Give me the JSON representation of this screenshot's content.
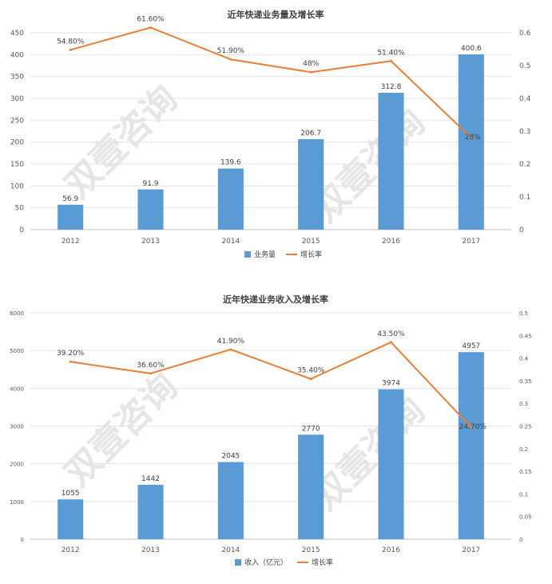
{
  "watermark_text": "双壹咨询",
  "chart_data": [
    {
      "type": "bar",
      "title": "近年快递业务量及增长率",
      "categories": [
        "2012",
        "2013",
        "2014",
        "2015",
        "2016",
        "2017"
      ],
      "series": [
        {
          "name": "业务量",
          "type": "bar",
          "axis": "left",
          "color": "#5b9bd5",
          "values": [
            56.9,
            91.9,
            139.6,
            206.7,
            312.8,
            400.6
          ],
          "labels": [
            "56.9",
            "91.9",
            "139.6",
            "206.7",
            "312.8",
            "400.6"
          ]
        },
        {
          "name": "增长率",
          "type": "line",
          "axis": "right",
          "color": "#ed7d31",
          "values": [
            0.548,
            0.616,
            0.519,
            0.48,
            0.514,
            0.28
          ],
          "labels": [
            "54.80%",
            "61.60%",
            "51.90%",
            "48%",
            "51.40%",
            "28%"
          ]
        }
      ],
      "ylim": [
        0,
        450
      ],
      "yticks": [
        "0",
        "50",
        "100",
        "150",
        "200",
        "250",
        "300",
        "350",
        "400",
        "450"
      ],
      "y2lim": [
        0,
        0.6
      ],
      "y2ticks": [
        "0",
        "0.1",
        "0.2",
        "0.3",
        "0.4",
        "0.5",
        "0.6"
      ],
      "grid": true,
      "legend": "bottom"
    },
    {
      "type": "bar",
      "title": "近年快递业务收入及增长率",
      "categories": [
        "2012",
        "2013",
        "2014",
        "2015",
        "2016",
        "2017"
      ],
      "series": [
        {
          "name": "收入（亿元）",
          "type": "bar",
          "axis": "left",
          "color": "#5b9bd5",
          "values": [
            1055,
            1442,
            2045,
            2770,
            3974,
            4957
          ],
          "labels": [
            "1055",
            "1442",
            "2045",
            "2770",
            "3974",
            "4957"
          ]
        },
        {
          "name": "增长率",
          "type": "line",
          "axis": "right",
          "color": "#ed7d31",
          "values": [
            0.392,
            0.366,
            0.419,
            0.354,
            0.435,
            0.247
          ],
          "labels": [
            "39.20%",
            "36.60%",
            "41.90%",
            "35.40%",
            "43.50%",
            "24.70%"
          ]
        }
      ],
      "ylim": [
        0,
        6000
      ],
      "yticks": [
        "0",
        "1000",
        "2000",
        "3000",
        "4000",
        "5000",
        "6000"
      ],
      "y2lim": [
        0,
        0.5
      ],
      "y2ticks": [
        "0",
        "0.05",
        "0.1",
        "0.15",
        "0.2",
        "0.25",
        "0.3",
        "0.35",
        "0.4",
        "0.45",
        "0.5"
      ],
      "grid": true,
      "legend": "bottom"
    }
  ]
}
